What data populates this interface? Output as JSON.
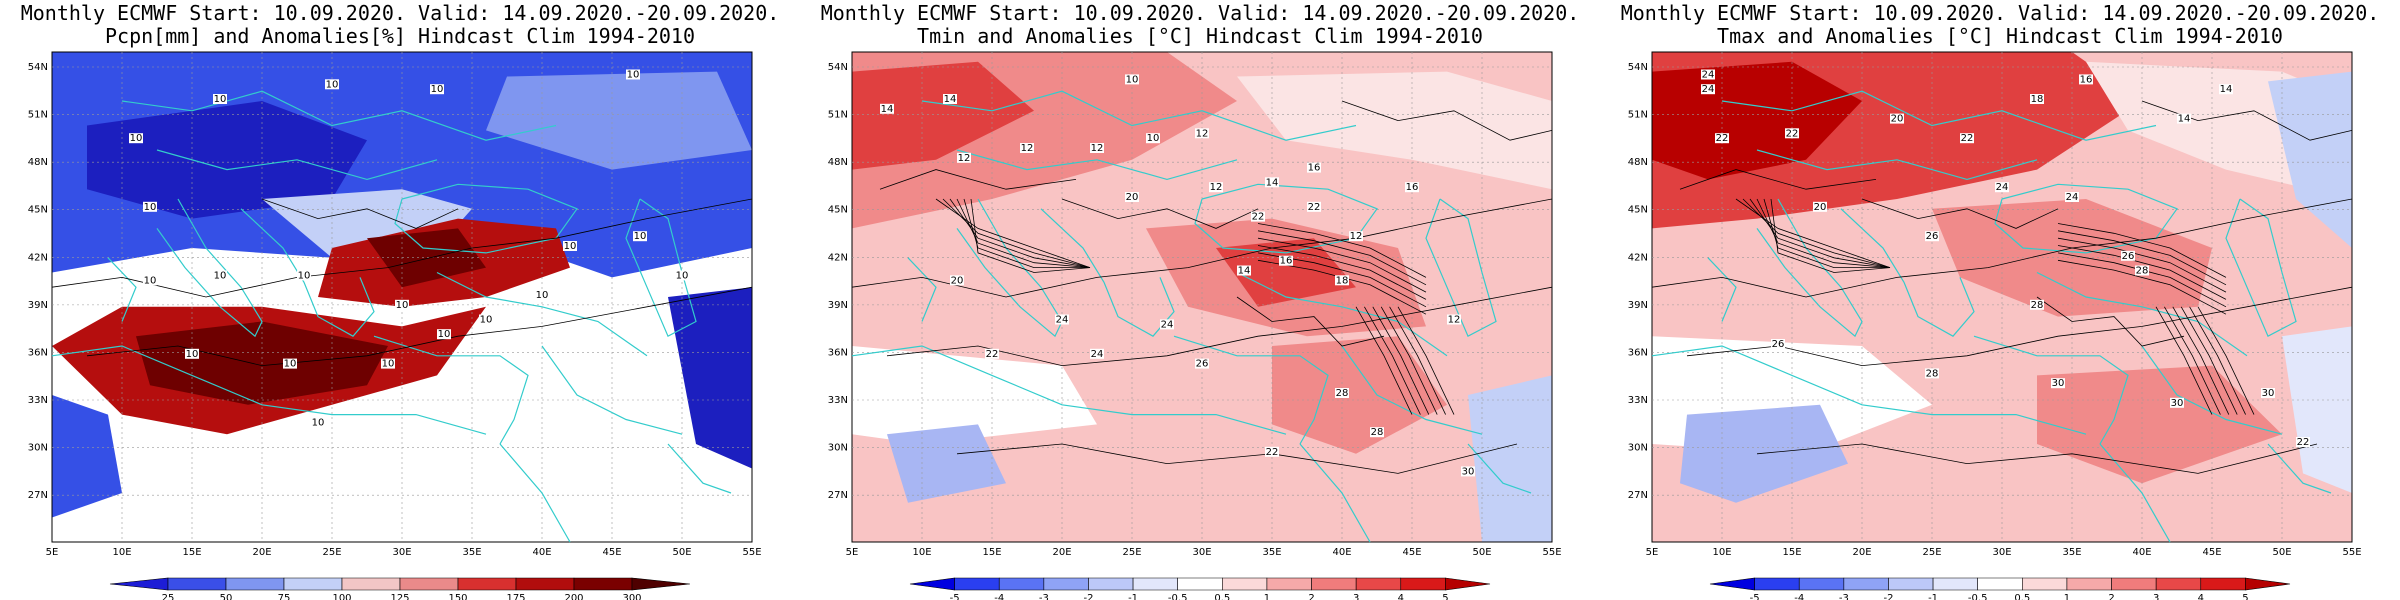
{
  "panels": [
    {
      "title_line1": "Monthly ECMWF Start: 10.09.2020. Valid: 14.09.2020.-20.09.2020.",
      "title_line2": "Pcpn[mm] and Anomalies[%] Hindcast Clim 1994-2010",
      "colorbar": {
        "labels": [
          "25",
          "50",
          "75",
          "100",
          "125",
          "150",
          "175",
          "200",
          "300"
        ],
        "colors": [
          "#1d1dd6",
          "#3a4fe8",
          "#7f96f0",
          "#c3d0f7",
          "#f2c6c6",
          "#ea8a8a",
          "#d8302f",
          "#b10d0d",
          "#7a0000",
          "#4f0000"
        ]
      },
      "contour_labels": [
        "10",
        "10",
        "10",
        "10",
        "10",
        "10",
        "10",
        "10",
        "10",
        "10",
        "10",
        "10",
        "10",
        "10",
        "10",
        "10",
        "10",
        "10",
        "10",
        "10"
      ]
    },
    {
      "title_line1": "Monthly ECMWF Start: 10.09.2020. Valid: 14.09.2020.-20.09.2020.",
      "title_line2": "Tmin and Anomalies [°C] Hindcast Clim 1994-2010",
      "colorbar": {
        "labels": [
          "-5",
          "-4",
          "-3",
          "-2",
          "-1",
          "-0.5",
          "0.5",
          "1",
          "2",
          "3",
          "4",
          "5"
        ],
        "colors": [
          "#0000e0",
          "#2a3ff0",
          "#5a73f4",
          "#8fa3f6",
          "#bcc8f8",
          "#e2e7fb",
          "#ffffff",
          "#fbd9d9",
          "#f6a9a9",
          "#f07c7c",
          "#e84848",
          "#d91919",
          "#b50000"
        ]
      },
      "contour_labels": [
        "14",
        "14",
        "12",
        "12",
        "12",
        "12",
        "10",
        "10",
        "12",
        "14",
        "16",
        "16",
        "20",
        "22",
        "22",
        "24",
        "24",
        "20",
        "22",
        "24",
        "26",
        "28",
        "28",
        "30",
        "22",
        "18",
        "16",
        "14",
        "12",
        "12"
      ]
    },
    {
      "title_line1": "Monthly ECMWF Start: 10.09.2020. Valid: 14.09.2020.-20.09.2020.",
      "title_line2": "Tmax and Anomalies [°C] Hindcast Clim 1994-2010",
      "colorbar": {
        "labels": [
          "-5",
          "-4",
          "-3",
          "-2",
          "-1",
          "-0.5",
          "0.5",
          "1",
          "2",
          "3",
          "4",
          "5"
        ],
        "colors": [
          "#0000e0",
          "#2a3ff0",
          "#5a73f4",
          "#8fa3f6",
          "#bcc8f8",
          "#e2e7fb",
          "#ffffff",
          "#fbd9d9",
          "#f6a9a9",
          "#f07c7c",
          "#e84848",
          "#d91919",
          "#b50000"
        ]
      },
      "contour_labels": [
        "24",
        "24",
        "22",
        "22",
        "20",
        "20",
        "18",
        "16",
        "14",
        "14",
        "22",
        "24",
        "24",
        "26",
        "26",
        "28",
        "28",
        "30",
        "30",
        "30",
        "26",
        "28",
        "22"
      ]
    }
  ],
  "axes": {
    "lat_labels": [
      "54N",
      "51N",
      "48N",
      "45N",
      "42N",
      "39N",
      "36N",
      "33N",
      "30N",
      "27N"
    ],
    "lon_labels": [
      "5E",
      "10E",
      "15E",
      "20E",
      "25E",
      "30E",
      "35E",
      "40E",
      "45E",
      "50E",
      "55E"
    ]
  },
  "colors": {
    "coast": "#33cccc",
    "contour": "#000000",
    "p_blue": "#3550e6",
    "p_dark_blue": "#1c1fbf",
    "p_red": "#b50e0e",
    "p_dark_red": "#6e0000",
    "t_light": "#f9c4c4",
    "t_mid": "#f08a8a",
    "t_strong": "#e04040",
    "t_dark": "#b80000",
    "t_blue": "#a8b6f3"
  }
}
